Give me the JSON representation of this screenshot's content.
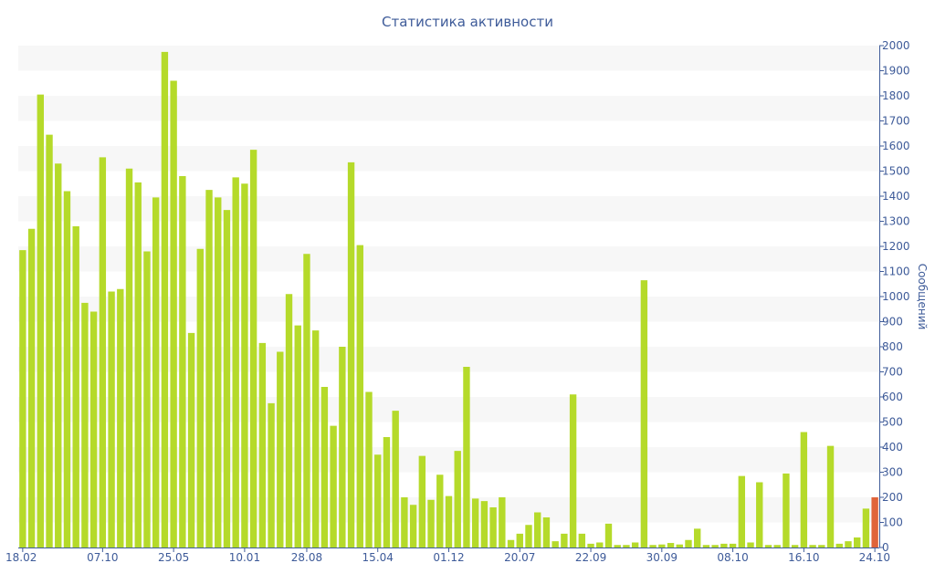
{
  "chart_data": {
    "type": "bar",
    "title": "Статистика активности",
    "xlabel": "",
    "ylabel": "Сообщений",
    "ylim": [
      0,
      2000
    ],
    "y_ticks": [
      0,
      100,
      200,
      300,
      400,
      500,
      600,
      700,
      800,
      900,
      1000,
      1100,
      1200,
      1300,
      1400,
      1500,
      1600,
      1700,
      1800,
      1900,
      2000
    ],
    "grid": "alternating horizontal bands",
    "x_tick_labels": [
      {
        "index": 0,
        "label": "18.02"
      },
      {
        "index": 9,
        "label": "07.10"
      },
      {
        "index": 17,
        "label": "25.05"
      },
      {
        "index": 25,
        "label": "10.01"
      },
      {
        "index": 32,
        "label": "28.08"
      },
      {
        "index": 40,
        "label": "15.04"
      },
      {
        "index": 48,
        "label": "01.12"
      },
      {
        "index": 56,
        "label": "20.07"
      },
      {
        "index": 64,
        "label": "22.09"
      },
      {
        "index": 72,
        "label": "30.09"
      },
      {
        "index": 80,
        "label": "08.10"
      },
      {
        "index": 88,
        "label": "16.10"
      },
      {
        "index": 96,
        "label": "24.10"
      }
    ],
    "values": [
      1185,
      1270,
      1805,
      1645,
      1530,
      1420,
      1280,
      975,
      940,
      1555,
      1020,
      1030,
      1510,
      1455,
      1180,
      1395,
      1975,
      1860,
      1480,
      855,
      1190,
      1425,
      1395,
      1345,
      1475,
      1450,
      1585,
      815,
      575,
      780,
      1010,
      885,
      1170,
      865,
      640,
      485,
      800,
      1535,
      1205,
      620,
      370,
      440,
      545,
      200,
      170,
      365,
      190,
      290,
      205,
      385,
      720,
      195,
      185,
      160,
      200,
      30,
      55,
      90,
      140,
      120,
      25,
      55,
      610,
      55,
      15,
      20,
      95,
      10,
      10,
      20,
      1065,
      10,
      12,
      18,
      12,
      30,
      75,
      10,
      10,
      15,
      15,
      285,
      20,
      260,
      10,
      10,
      295,
      10,
      460,
      10,
      10,
      405,
      15,
      25,
      40,
      155,
      200
    ],
    "highlight_index": 96,
    "colors": {
      "bar": "#b5da2a",
      "highlight": "#e0643a",
      "band": "#f7f7f7",
      "text": "#3e5b99",
      "axis": "#3e5b99"
    }
  }
}
